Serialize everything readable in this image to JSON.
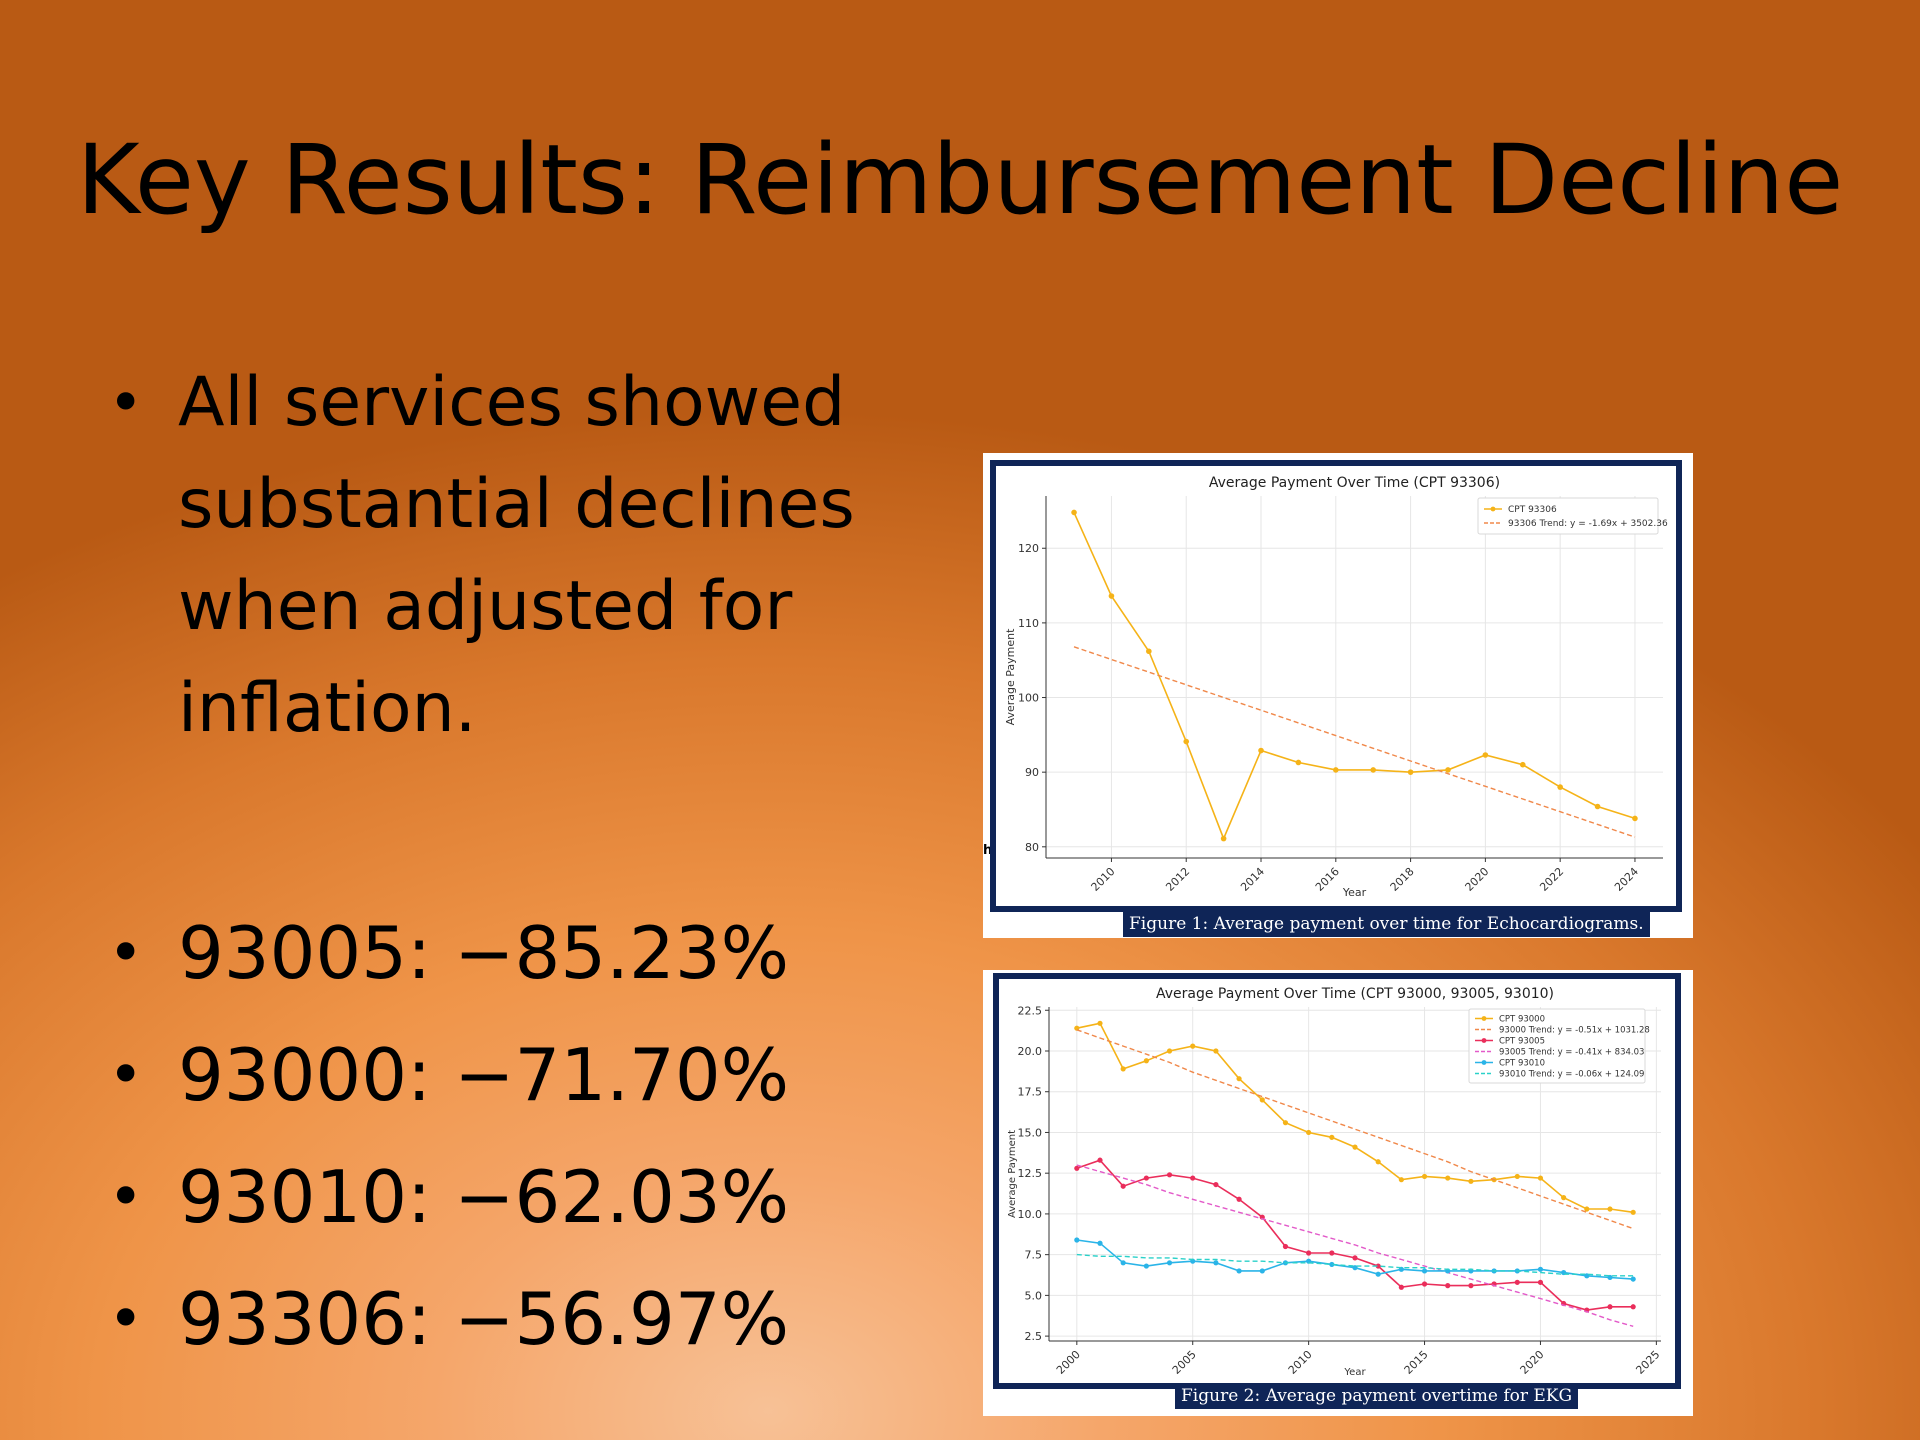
{
  "slide": {
    "title": "Key Results: Reimbursement Decline",
    "bullet1": "All services showed substantial declines when adjusted for inflation.",
    "stats": [
      "93005: −85.23%",
      "93000: −71.70%",
      "93010: −62.03%",
      "93306: −56.97%"
    ],
    "bullet_glyph": "•",
    "stray_glyph": "h"
  },
  "figures": {
    "fig1_caption": "Figure 1: Average payment over time for Echocardiograms.",
    "fig2_caption": "Figure 2: Average payment overtime for EKG"
  },
  "chart_data": [
    {
      "type": "line",
      "title": "Average Payment Over Time (CPT 93306)",
      "xlabel": "Year",
      "ylabel": "Average Payment",
      "x": [
        2009,
        2010,
        2011,
        2012,
        2013,
        2014,
        2015,
        2016,
        2017,
        2018,
        2019,
        2020,
        2021,
        2022,
        2023,
        2024
      ],
      "xlim": [
        2008.25,
        2024.75
      ],
      "ylim": [
        78.5,
        127
      ],
      "xticks": [
        2010,
        2012,
        2014,
        2016,
        2018,
        2020,
        2022,
        2024
      ],
      "yticks": [
        80,
        90,
        100,
        110,
        120
      ],
      "grid": true,
      "legend_position": "top-right",
      "series": [
        {
          "name": "CPT 93306",
          "color": "#f5b318",
          "kind": "solid-marker",
          "values": [
            124.8,
            113.6,
            106.2,
            94.1,
            81.1,
            92.9,
            91.3,
            90.3,
            90.3,
            90.0,
            90.3,
            92.3,
            91.0,
            88.0,
            85.4,
            83.8
          ]
        },
        {
          "name": "93306 Trend: y = -1.69x + 3502.36",
          "color": "#f0884a",
          "kind": "dashed",
          "values": [
            106.8,
            105.1,
            103.4,
            101.7,
            100.0,
            98.3,
            96.6,
            94.9,
            93.2,
            91.5,
            89.8,
            88.1,
            86.4,
            84.7,
            83.0,
            81.3
          ]
        }
      ]
    },
    {
      "type": "line",
      "title": "Average Payment Over Time (CPT 93000, 93005, 93010)",
      "xlabel": "Year",
      "ylabel": "Average Payment",
      "x": [
        2000,
        2001,
        2002,
        2003,
        2004,
        2005,
        2006,
        2007,
        2008,
        2009,
        2010,
        2011,
        2012,
        2013,
        2014,
        2015,
        2016,
        2017,
        2018,
        2019,
        2020,
        2021,
        2022,
        2023,
        2024
      ],
      "xlim": [
        1998.8,
        2025.2
      ],
      "ylim": [
        2.2,
        22.7
      ],
      "xticks": [
        2000,
        2005,
        2010,
        2015,
        2020,
        2025
      ],
      "yticks": [
        2.5,
        5.0,
        7.5,
        10.0,
        12.5,
        15.0,
        17.5,
        20.0,
        22.5
      ],
      "grid": true,
      "legend_position": "top-right",
      "series": [
        {
          "name": "CPT 93000",
          "color": "#f5b318",
          "kind": "solid-marker",
          "values": [
            21.4,
            21.7,
            18.9,
            19.4,
            20.0,
            20.3,
            20.0,
            18.3,
            17.0,
            15.6,
            15.0,
            14.7,
            14.1,
            13.2,
            12.1,
            12.3,
            12.2,
            12.0,
            12.1,
            12.3,
            12.2,
            11.0,
            10.3,
            10.3,
            10.1
          ]
        },
        {
          "name": "93000 Trend: y = -0.51x + 1031.28",
          "color": "#f0884a",
          "kind": "dashed",
          "values": [
            21.3,
            20.8,
            20.3,
            19.8,
            19.3,
            18.7,
            18.2,
            17.7,
            17.2,
            16.7,
            16.2,
            15.7,
            15.2,
            14.7,
            14.2,
            13.7,
            13.2,
            12.6,
            12.1,
            11.6,
            11.1,
            10.6,
            10.1,
            9.6,
            9.1
          ]
        },
        {
          "name": "CPT 93005",
          "color": "#ea2e5b",
          "kind": "solid-marker",
          "values": [
            12.8,
            13.3,
            11.7,
            12.2,
            12.4,
            12.2,
            11.8,
            10.9,
            9.8,
            8.0,
            7.6,
            7.6,
            7.3,
            6.8,
            5.5,
            5.7,
            5.6,
            5.6,
            5.7,
            5.8,
            5.8,
            4.5,
            4.1,
            4.3,
            4.3
          ]
        },
        {
          "name": "93005 Trend: y = -0.41x + 834.03",
          "color": "#e35ac9",
          "kind": "dashed",
          "values": [
            13.0,
            12.6,
            12.2,
            11.8,
            11.3,
            10.9,
            10.5,
            10.1,
            9.7,
            9.3,
            8.9,
            8.5,
            8.1,
            7.6,
            7.2,
            6.8,
            6.4,
            6.0,
            5.6,
            5.2,
            4.8,
            4.4,
            4.0,
            3.5,
            3.1
          ]
        },
        {
          "name": "CPT 93010",
          "color": "#2ab4e8",
          "kind": "solid-marker",
          "values": [
            8.4,
            8.2,
            7.0,
            6.8,
            7.0,
            7.1,
            7.0,
            6.5,
            6.5,
            7.0,
            7.1,
            6.9,
            6.7,
            6.3,
            6.6,
            6.5,
            6.5,
            6.5,
            6.5,
            6.5,
            6.6,
            6.4,
            6.2,
            6.1,
            6.0
          ]
        },
        {
          "name": "93010 Trend: y = -0.06x + 124.09",
          "color": "#2ad1c9",
          "kind": "dashed",
          "values": [
            7.5,
            7.4,
            7.4,
            7.3,
            7.3,
            7.2,
            7.2,
            7.1,
            7.1,
            7.0,
            7.0,
            6.9,
            6.8,
            6.8,
            6.7,
            6.7,
            6.6,
            6.6,
            6.5,
            6.5,
            6.4,
            6.3,
            6.3,
            6.2,
            6.2
          ]
        }
      ]
    }
  ]
}
